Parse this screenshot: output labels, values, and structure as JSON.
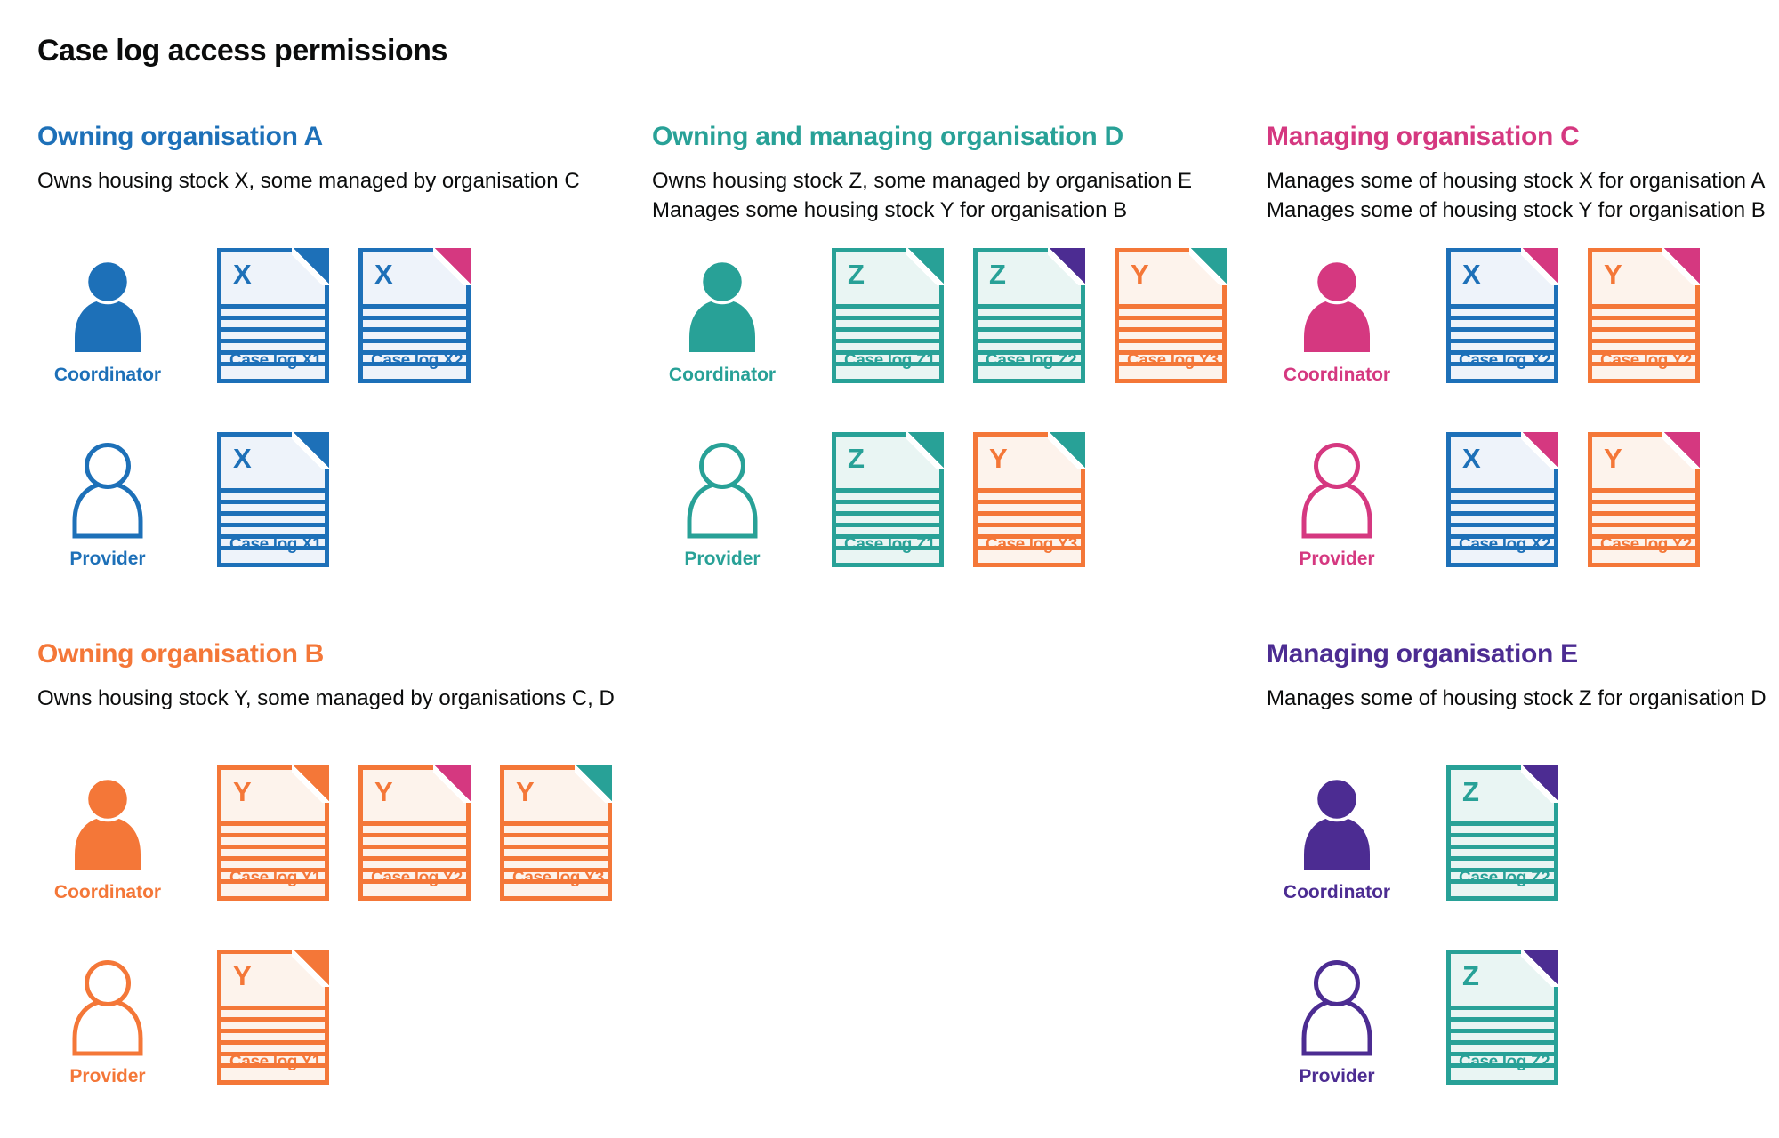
{
  "title": "Case log access permissions",
  "palette": {
    "blue": "#1d70b8",
    "teal": "#28a197",
    "pink": "#d53880",
    "orange": "#f47738",
    "purple": "#4c2c92",
    "text": "#0b0c0c"
  },
  "doc_tints": {
    "blue": "#eef3fa",
    "teal": "#e9f5f3",
    "orange": "#fdf3ec"
  },
  "sections": [
    {
      "id": "owning-organisation-a",
      "heading": "Owning organisation A",
      "color": "blue",
      "grid": {
        "row": 1,
        "col": 1
      },
      "description": [
        "Owns housing stock X, some managed by organisation C"
      ],
      "rows": [
        {
          "role": "Coordinator",
          "person_style": "filled",
          "docs": [
            {
              "letter": "X",
              "label": "Case log X1",
              "doc_color": "blue",
              "fold_color": "blue"
            },
            {
              "letter": "X",
              "label": "Case log X2",
              "doc_color": "blue",
              "fold_color": "pink"
            }
          ]
        },
        {
          "role": "Provider",
          "person_style": "outline",
          "docs": [
            {
              "letter": "X",
              "label": "Case log X1",
              "doc_color": "blue",
              "fold_color": "blue"
            }
          ]
        }
      ]
    },
    {
      "id": "owning-and-managing-organisation-d",
      "heading": "Owning and managing organisation D",
      "color": "teal",
      "grid": {
        "row": 1,
        "col": 2
      },
      "description": [
        "Owns housing stock Z, some managed by organisation E",
        "Manages some housing stock Y for organisation B"
      ],
      "rows": [
        {
          "role": "Coordinator",
          "person_style": "filled",
          "docs": [
            {
              "letter": "Z",
              "label": "Case log Z1",
              "doc_color": "teal",
              "fold_color": "teal"
            },
            {
              "letter": "Z",
              "label": "Case log Z2",
              "doc_color": "teal",
              "fold_color": "purple"
            },
            {
              "letter": "Y",
              "label": "Case log Y3",
              "doc_color": "orange",
              "fold_color": "teal"
            }
          ]
        },
        {
          "role": "Provider",
          "person_style": "outline",
          "docs": [
            {
              "letter": "Z",
              "label": "Case log Z1",
              "doc_color": "teal",
              "fold_color": "teal"
            },
            {
              "letter": "Y",
              "label": "Case log Y3",
              "doc_color": "orange",
              "fold_color": "teal"
            }
          ]
        }
      ]
    },
    {
      "id": "managing-organisation-c",
      "heading": "Managing organisation C",
      "color": "pink",
      "grid": {
        "row": 1,
        "col": 3
      },
      "description": [
        "Manages some of housing stock X for organisation A",
        "Manages some of housing stock Y for organisation B"
      ],
      "rows": [
        {
          "role": "Coordinator",
          "person_style": "filled",
          "docs": [
            {
              "letter": "X",
              "label": "Case log X2",
              "doc_color": "blue",
              "fold_color": "pink"
            },
            {
              "letter": "Y",
              "label": "Case log Y2",
              "doc_color": "orange",
              "fold_color": "pink"
            }
          ]
        },
        {
          "role": "Provider",
          "person_style": "outline",
          "docs": [
            {
              "letter": "X",
              "label": "Case log X2",
              "doc_color": "blue",
              "fold_color": "pink"
            },
            {
              "letter": "Y",
              "label": "Case log Y2",
              "doc_color": "orange",
              "fold_color": "pink"
            }
          ]
        }
      ]
    },
    {
      "id": "owning-organisation-b",
      "heading": "Owning organisation B",
      "color": "orange",
      "grid": {
        "row": 2,
        "col": 1
      },
      "description": [
        "Owns housing stock Y, some managed by organisations C, D"
      ],
      "rows": [
        {
          "role": "Coordinator",
          "person_style": "filled",
          "docs": [
            {
              "letter": "Y",
              "label": "Case log Y1",
              "doc_color": "orange",
              "fold_color": "orange"
            },
            {
              "letter": "Y",
              "label": "Case log Y2",
              "doc_color": "orange",
              "fold_color": "pink"
            },
            {
              "letter": "Y",
              "label": "Case log Y3",
              "doc_color": "orange",
              "fold_color": "teal"
            }
          ]
        },
        {
          "role": "Provider",
          "person_style": "outline",
          "docs": [
            {
              "letter": "Y",
              "label": "Case log Y1",
              "doc_color": "orange",
              "fold_color": "orange"
            }
          ]
        }
      ]
    },
    {
      "id": "managing-organisation-e",
      "heading": "Managing organisation E",
      "color": "purple",
      "grid": {
        "row": 2,
        "col": 3
      },
      "description": [
        "Manages some of housing stock Z for organisation D"
      ],
      "rows": [
        {
          "role": "Coordinator",
          "person_style": "filled",
          "docs": [
            {
              "letter": "Z",
              "label": "Case log Z2",
              "doc_color": "teal",
              "fold_color": "purple"
            }
          ]
        },
        {
          "role": "Provider",
          "person_style": "outline",
          "docs": [
            {
              "letter": "Z",
              "label": "Case log Z2",
              "doc_color": "teal",
              "fold_color": "purple"
            }
          ]
        }
      ]
    }
  ]
}
